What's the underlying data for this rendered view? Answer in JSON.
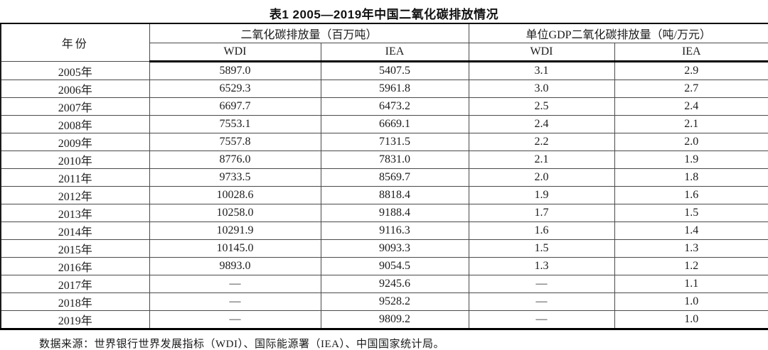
{
  "title": "表1 2005—2019年中国二氧化碳排放情况",
  "table": {
    "year_header": "年份",
    "groups": [
      {
        "label": "二氧化碳排放量（百万吨）",
        "sub": [
          "WDI",
          "IEA"
        ]
      },
      {
        "label": "单位GDP二氧化碳排放量（吨/万元）",
        "sub": [
          "WDI",
          "IEA"
        ]
      }
    ],
    "rows": [
      [
        "2005年",
        "5897.0",
        "5407.5",
        "3.1",
        "2.9"
      ],
      [
        "2006年",
        "6529.3",
        "5961.8",
        "3.0",
        "2.7"
      ],
      [
        "2007年",
        "6697.7",
        "6473.2",
        "2.5",
        "2.4"
      ],
      [
        "2008年",
        "7553.1",
        "6669.1",
        "2.4",
        "2.1"
      ],
      [
        "2009年",
        "7557.8",
        "7131.5",
        "2.2",
        "2.0"
      ],
      [
        "2010年",
        "8776.0",
        "7831.0",
        "2.1",
        "1.9"
      ],
      [
        "2011年",
        "9733.5",
        "8569.7",
        "2.0",
        "1.8"
      ],
      [
        "2012年",
        "10028.6",
        "8818.4",
        "1.9",
        "1.6"
      ],
      [
        "2013年",
        "10258.0",
        "9188.4",
        "1.7",
        "1.5"
      ],
      [
        "2014年",
        "10291.9",
        "9116.3",
        "1.6",
        "1.4"
      ],
      [
        "2015年",
        "10145.0",
        "9093.3",
        "1.5",
        "1.3"
      ],
      [
        "2016年",
        "9893.0",
        "9054.5",
        "1.3",
        "1.2"
      ],
      [
        "2017年",
        "—",
        "9245.6",
        "—",
        "1.1"
      ],
      [
        "2018年",
        "—",
        "9528.2",
        "—",
        "1.0"
      ],
      [
        "2019年",
        "—",
        "9809.2",
        "—",
        "1.0"
      ]
    ]
  },
  "footer": "数据来源：世界银行世界发展指标（WDI）、国际能源署（IEA）、中国国家统计局。"
}
